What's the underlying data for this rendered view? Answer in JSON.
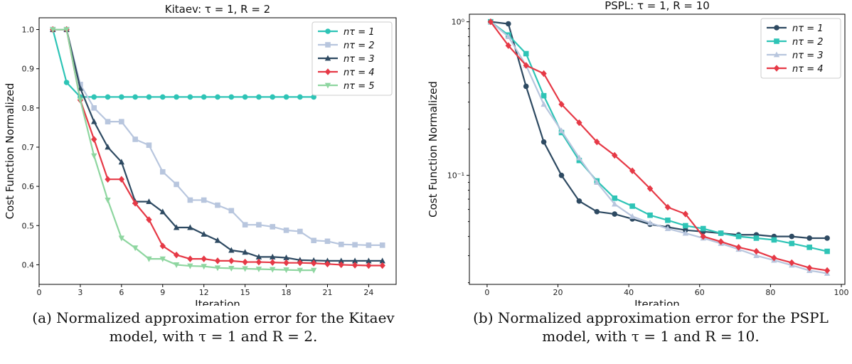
{
  "colors": {
    "s1": "#2ec4b6",
    "s2": "#b8c6de",
    "s3": "#2e4a62",
    "s4": "#e63946",
    "s5": "#8ed6a0"
  },
  "chart_data": [
    {
      "type": "line",
      "title": "Kitaev: τ = 1, R = 2",
      "xlabel": "Iteration",
      "ylabel": "Cost Function Normalized",
      "xlim": [
        0,
        26
      ],
      "ylim": [
        0.35,
        1.03
      ],
      "xticks": [
        0,
        3,
        6,
        9,
        12,
        15,
        18,
        21,
        24
      ],
      "yticks": [
        0.4,
        0.5,
        0.6,
        0.7,
        0.8,
        0.9,
        1.0
      ],
      "ytick_labels": [
        "0.4",
        "0.5",
        "0.6",
        "0.7",
        "0.8",
        "0.9",
        "1.0"
      ],
      "yscale": "linear",
      "legend": "top-right",
      "series": [
        {
          "name": "n_τ = 1",
          "legend_label": "nτ = 1",
          "color": "#2ec4b6",
          "marker": "circle",
          "x": [
            1,
            2,
            3,
            4,
            5,
            6,
            7,
            8,
            9,
            10,
            11,
            12,
            13,
            14,
            15,
            16,
            17,
            18,
            19,
            20
          ],
          "y": [
            1.0,
            0.865,
            0.828,
            0.828,
            0.828,
            0.828,
            0.828,
            0.828,
            0.828,
            0.828,
            0.828,
            0.828,
            0.828,
            0.828,
            0.828,
            0.828,
            0.828,
            0.828,
            0.828,
            0.828
          ]
        },
        {
          "name": "n_τ = 2",
          "legend_label": "nτ = 2",
          "color": "#b8c6de",
          "marker": "square",
          "x": [
            1,
            2,
            3,
            4,
            5,
            6,
            7,
            8,
            9,
            10,
            11,
            12,
            13,
            14,
            15,
            16,
            17,
            18,
            19,
            20,
            21,
            22,
            23,
            24,
            25
          ],
          "y": [
            1.0,
            1.0,
            0.86,
            0.8,
            0.765,
            0.765,
            0.72,
            0.705,
            0.637,
            0.605,
            0.565,
            0.565,
            0.552,
            0.538,
            0.502,
            0.502,
            0.497,
            0.488,
            0.485,
            0.462,
            0.46,
            0.452,
            0.451,
            0.45,
            0.45
          ]
        },
        {
          "name": "n_τ = 3",
          "legend_label": "nτ = 3",
          "color": "#2e4a62",
          "marker": "triangle-up",
          "x": [
            1,
            2,
            3,
            4,
            5,
            6,
            7,
            8,
            9,
            10,
            11,
            12,
            13,
            14,
            15,
            16,
            17,
            18,
            19,
            20,
            21,
            22,
            23,
            24,
            25
          ],
          "y": [
            1.0,
            1.0,
            0.85,
            0.765,
            0.7,
            0.662,
            0.561,
            0.561,
            0.535,
            0.495,
            0.495,
            0.478,
            0.462,
            0.437,
            0.432,
            0.42,
            0.42,
            0.418,
            0.412,
            0.411,
            0.41,
            0.41,
            0.41,
            0.41,
            0.41
          ]
        },
        {
          "name": "n_τ = 4",
          "legend_label": "nτ = 4",
          "color": "#e63946",
          "marker": "diamond",
          "x": [
            1,
            2,
            3,
            4,
            5,
            6,
            7,
            8,
            9,
            10,
            11,
            12,
            13,
            14,
            15,
            16,
            17,
            18,
            19,
            20,
            21,
            22,
            23,
            24,
            25
          ],
          "y": [
            1.0,
            1.0,
            0.82,
            0.72,
            0.618,
            0.618,
            0.557,
            0.515,
            0.448,
            0.425,
            0.415,
            0.415,
            0.41,
            0.41,
            0.407,
            0.407,
            0.406,
            0.405,
            0.405,
            0.404,
            0.402,
            0.4,
            0.399,
            0.398,
            0.398
          ]
        },
        {
          "name": "n_τ = 5",
          "legend_label": "nτ = 5",
          "color": "#8ed6a0",
          "marker": "triangle-down",
          "x": [
            1,
            2,
            3,
            4,
            5,
            6,
            7,
            8,
            9,
            10,
            11,
            12,
            13,
            14,
            15,
            16,
            17,
            18,
            19,
            20
          ],
          "y": [
            1.0,
            1.0,
            0.82,
            0.678,
            0.565,
            0.468,
            0.443,
            0.415,
            0.415,
            0.4,
            0.397,
            0.396,
            0.392,
            0.391,
            0.39,
            0.389,
            0.388,
            0.387,
            0.386,
            0.386
          ]
        }
      ]
    },
    {
      "type": "line",
      "title": "PSPL: τ = 1, R = 10",
      "xlabel": "Iteration",
      "ylabel": "Cost Function Normalized",
      "xlim": [
        -5,
        101
      ],
      "ylim": [
        0.0195,
        1.12
      ],
      "xticks": [
        0,
        20,
        40,
        60,
        80,
        100
      ],
      "yticks": [
        1.0,
        0.1
      ],
      "ytick_labels": [
        "10⁰",
        "10⁻¹"
      ],
      "yscale": "log",
      "legend": "top-right",
      "series": [
        {
          "name": "n_τ = 1",
          "legend_label": "nτ = 1",
          "color": "#2e4a62",
          "marker": "circle",
          "x": [
            1,
            6,
            11,
            16,
            21,
            26,
            31,
            36,
            41,
            46,
            51,
            56,
            61,
            66,
            71,
            76,
            81,
            86,
            91,
            96
          ],
          "y": [
            1.0,
            0.97,
            0.38,
            0.165,
            0.1,
            0.068,
            0.058,
            0.056,
            0.052,
            0.048,
            0.046,
            0.044,
            0.043,
            0.042,
            0.041,
            0.041,
            0.04,
            0.04,
            0.039,
            0.039
          ]
        },
        {
          "name": "n_τ = 2",
          "legend_label": "nτ = 2",
          "color": "#2ec4b6",
          "marker": "square",
          "x": [
            1,
            6,
            11,
            16,
            21,
            26,
            31,
            36,
            41,
            46,
            51,
            56,
            61,
            66,
            71,
            76,
            81,
            86,
            91,
            96
          ],
          "y": [
            1.0,
            0.82,
            0.62,
            0.33,
            0.19,
            0.125,
            0.092,
            0.071,
            0.063,
            0.055,
            0.051,
            0.047,
            0.045,
            0.042,
            0.04,
            0.039,
            0.038,
            0.036,
            0.034,
            0.032
          ]
        },
        {
          "name": "n_τ = 3",
          "legend_label": "nτ = 3",
          "color": "#b8c6de",
          "marker": "triangle-up",
          "x": [
            1,
            6,
            11,
            16,
            21,
            26,
            31,
            36,
            41,
            46,
            51,
            56,
            61,
            66,
            71,
            76,
            81,
            86,
            91,
            96
          ],
          "y": [
            1.0,
            0.8,
            0.52,
            0.29,
            0.195,
            0.13,
            0.09,
            0.065,
            0.054,
            0.049,
            0.045,
            0.042,
            0.039,
            0.036,
            0.033,
            0.03,
            0.028,
            0.026,
            0.024,
            0.023
          ]
        },
        {
          "name": "n_τ = 4",
          "legend_label": "nτ = 4",
          "color": "#e63946",
          "marker": "diamond",
          "x": [
            1,
            6,
            11,
            16,
            21,
            26,
            31,
            36,
            41,
            46,
            51,
            56,
            61,
            66,
            71,
            76,
            81,
            86,
            91,
            96
          ],
          "y": [
            1.0,
            0.7,
            0.52,
            0.46,
            0.29,
            0.22,
            0.165,
            0.135,
            0.107,
            0.082,
            0.062,
            0.056,
            0.04,
            0.037,
            0.034,
            0.032,
            0.029,
            0.027,
            0.025,
            0.024
          ]
        }
      ]
    }
  ],
  "captions": {
    "a_line1": "(a) Normalized approximation error for the Kitaev",
    "a_line2": "model, with τ = 1 and R = 2.",
    "b_line1": "(b) Normalized approximation error for the PSPL",
    "b_line2": "model, with τ = 1 and R = 10."
  }
}
